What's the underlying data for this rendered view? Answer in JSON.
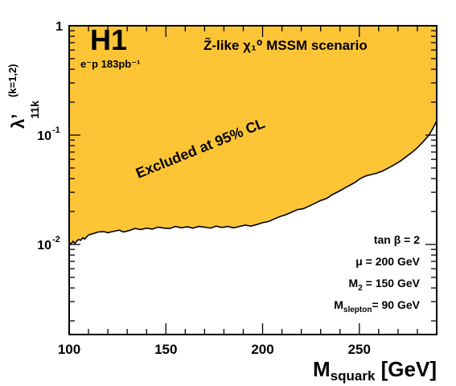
{
  "chart_data": {
    "type": "area",
    "title": "",
    "experiment_logo": "H1",
    "luminosity_label": "e⁻p 183pb⁻¹",
    "scenario_label": "Z̃-like  χ₁⁰  MSSM scenario",
    "xlabel": {
      "main": "M",
      "sub": "squark",
      "unit": " [GeV]"
    },
    "ylabel": {
      "main": "λ’",
      "sub": "11k",
      "sup": "(k=1,2)"
    },
    "xlim": [
      100,
      290
    ],
    "ylim": [
      0.0015,
      1
    ],
    "yscale": "log",
    "x_ticks": [
      100,
      150,
      200,
      250
    ],
    "x_tick_labels": [
      "100",
      "150",
      "200",
      "250"
    ],
    "y_ticks": [
      0.01,
      0.1,
      1
    ],
    "y_tick_labels": [
      {
        "base": "10",
        "exp": "-2"
      },
      {
        "base": "10",
        "exp": "-1"
      },
      {
        "base": "1",
        "exp": ""
      }
    ],
    "region_label": "Excluded at 95% CL",
    "fill_color": "#fdc536",
    "line_color": "#000000",
    "series": [
      {
        "x": [
          100,
          101,
          102,
          103,
          104,
          105,
          106,
          107,
          108,
          109,
          110,
          112,
          115,
          118,
          120,
          123,
          126,
          128,
          131,
          134,
          137,
          140,
          143,
          146,
          149,
          152,
          155,
          158,
          161,
          164,
          167,
          170,
          173,
          176,
          179,
          182,
          185,
          188,
          191,
          194,
          197,
          200,
          203,
          206,
          209,
          212,
          215,
          218,
          221,
          224,
          227,
          230,
          233,
          236,
          239,
          242,
          245,
          248,
          250,
          253,
          256,
          259,
          262,
          265,
          268,
          271,
          274,
          277,
          280,
          283,
          286,
          288,
          290
        ],
        "values": [
          0.0104,
          0.0101,
          0.0107,
          0.0102,
          0.0108,
          0.0111,
          0.0109,
          0.0115,
          0.0112,
          0.0117,
          0.0122,
          0.0125,
          0.013,
          0.0131,
          0.0128,
          0.0132,
          0.0135,
          0.013,
          0.0134,
          0.014,
          0.0137,
          0.0141,
          0.0138,
          0.0144,
          0.0141,
          0.014,
          0.0146,
          0.0142,
          0.0145,
          0.0141,
          0.0146,
          0.0144,
          0.0141,
          0.0147,
          0.0143,
          0.0146,
          0.0142,
          0.0146,
          0.015,
          0.0147,
          0.0152,
          0.0158,
          0.0162,
          0.0171,
          0.018,
          0.0187,
          0.0197,
          0.0208,
          0.0212,
          0.0224,
          0.0238,
          0.0252,
          0.0263,
          0.0285,
          0.0303,
          0.0325,
          0.0347,
          0.0372,
          0.0395,
          0.0421,
          0.0435,
          0.0448,
          0.047,
          0.05,
          0.0535,
          0.0575,
          0.063,
          0.069,
          0.0765,
          0.087,
          0.1,
          0.115,
          0.135
        ]
      }
    ],
    "parameters": [
      {
        "text": "tan β = 2"
      },
      {
        "text": "μ  = 200 GeV"
      },
      {
        "text": "M",
        "sub": "2",
        "rest": " = 150 GeV"
      },
      {
        "text": "M",
        "sub": "slepton",
        "rest": "= 90 GeV"
      }
    ],
    "grid": false
  }
}
